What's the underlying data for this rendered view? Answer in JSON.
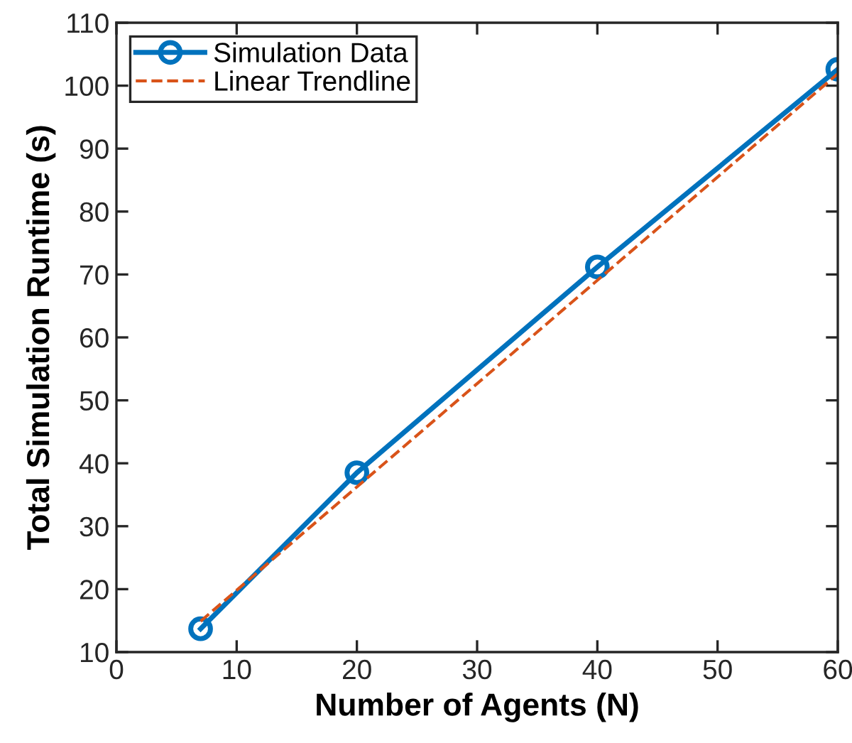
{
  "chart_data": {
    "type": "line",
    "xlabel": "Number of Agents (N)",
    "ylabel": "Total Simulation Runtime (s)",
    "xlim": [
      0,
      60
    ],
    "xticks": [
      0,
      10,
      20,
      30,
      40,
      50,
      60
    ],
    "ylim": [
      10,
      110
    ],
    "yticks": [
      10,
      20,
      30,
      40,
      50,
      60,
      70,
      80,
      90,
      100,
      110
    ],
    "grid": false,
    "legend": "top left",
    "series": [
      {
        "name": "Simulation Data",
        "color": "#0072bd",
        "x": [
          7,
          20,
          40,
          60
        ],
        "values": [
          13.7,
          38.5,
          71.2,
          102.6
        ],
        "marker": "circle",
        "line_style": "solid"
      },
      {
        "name": "Linear Trendline",
        "color": "#d95319",
        "x": [
          7,
          60
        ],
        "values": [
          14.9,
          101.9
        ],
        "marker": "none",
        "line_style": "dashed"
      }
    ]
  }
}
